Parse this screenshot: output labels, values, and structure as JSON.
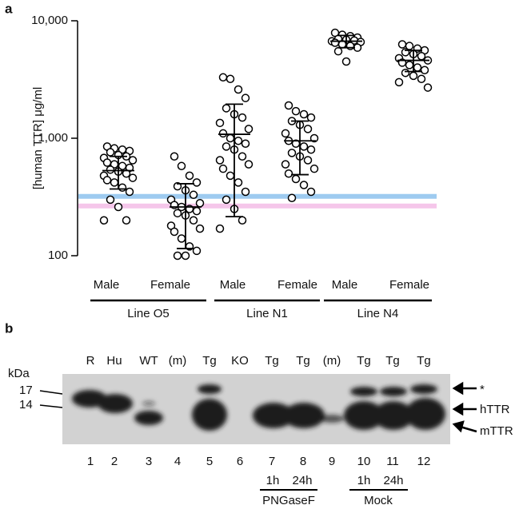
{
  "chart_data": {
    "type": "dotplot",
    "panel_label": "a",
    "ylabel": "[human TTR] μg/ml",
    "log_scale": true,
    "ylim": [
      100,
      10000
    ],
    "yticks": [
      100,
      {
        "value": 1000,
        "label": "1,000"
      },
      {
        "value": 10000,
        "label": "10,000"
      }
    ],
    "categories": [
      "Male",
      "Female",
      "Male",
      "Female",
      "Male",
      "Female"
    ],
    "group_labels": [
      "Line O5",
      "Line N1",
      "Line N4"
    ],
    "points": [
      [
        850,
        820,
        800,
        780,
        760,
        720,
        700,
        680,
        650,
        620,
        600,
        580,
        560,
        540,
        520,
        500,
        480,
        460,
        440,
        420,
        380,
        350,
        300,
        260,
        200,
        200
      ],
      [
        700,
        580,
        480,
        420,
        390,
        360,
        330,
        300,
        280,
        270,
        260,
        250,
        240,
        230,
        220,
        200,
        180,
        170,
        160,
        140,
        120,
        110,
        100,
        100
      ],
      [
        3300,
        3200,
        2600,
        2200,
        1800,
        1600,
        1500,
        1350,
        1200,
        1100,
        1000,
        950,
        900,
        850,
        800,
        700,
        650,
        600,
        550,
        480,
        420,
        350,
        300,
        250,
        200,
        170
      ],
      [
        1900,
        1700,
        1600,
        1500,
        1400,
        1300,
        1200,
        1100,
        1000,
        950,
        900,
        850,
        800,
        750,
        700,
        650,
        600,
        550,
        500,
        450,
        400,
        350,
        310
      ],
      [
        7900,
        7600,
        7400,
        7200,
        7000,
        6900,
        6800,
        6700,
        6600,
        6500,
        6300,
        6100,
        5900,
        5500,
        4500
      ],
      [
        6300,
        6100,
        5800,
        5600,
        5400,
        5200,
        5000,
        4800,
        4600,
        4400,
        4200,
        4000,
        3800,
        3600,
        3400,
        3200,
        3000,
        2700
      ]
    ],
    "mean": [
      530,
      260,
      1080,
      950,
      6700,
      4600
    ],
    "sd_low": [
      370,
      115,
      215,
      490,
      5900,
      3700
    ],
    "sd_high": [
      700,
      410,
      1950,
      1400,
      7500,
      5600
    ],
    "reference_lines": [
      {
        "value": 320,
        "color": "#9ecbf0"
      },
      {
        "value": 265,
        "color": "#f5c6ea"
      }
    ]
  },
  "blot": {
    "panel_label": "b",
    "unit": "kDa",
    "markers": [
      17,
      14
    ],
    "lane_headers": [
      "R",
      "Hu",
      "WT",
      "(m)",
      "Tg",
      "KO",
      "Tg",
      "Tg",
      "(m)",
      "Tg",
      "Tg",
      "Tg"
    ],
    "lane_numbers": [
      1,
      2,
      3,
      4,
      5,
      6,
      7,
      8,
      9,
      10,
      11,
      12
    ],
    "times": [
      "1h",
      "24h",
      "1h",
      "24h"
    ],
    "treatments": [
      "PNGaseF",
      "Mock"
    ],
    "band_labels": [
      "*",
      "hTTR",
      "mTTR"
    ]
  }
}
